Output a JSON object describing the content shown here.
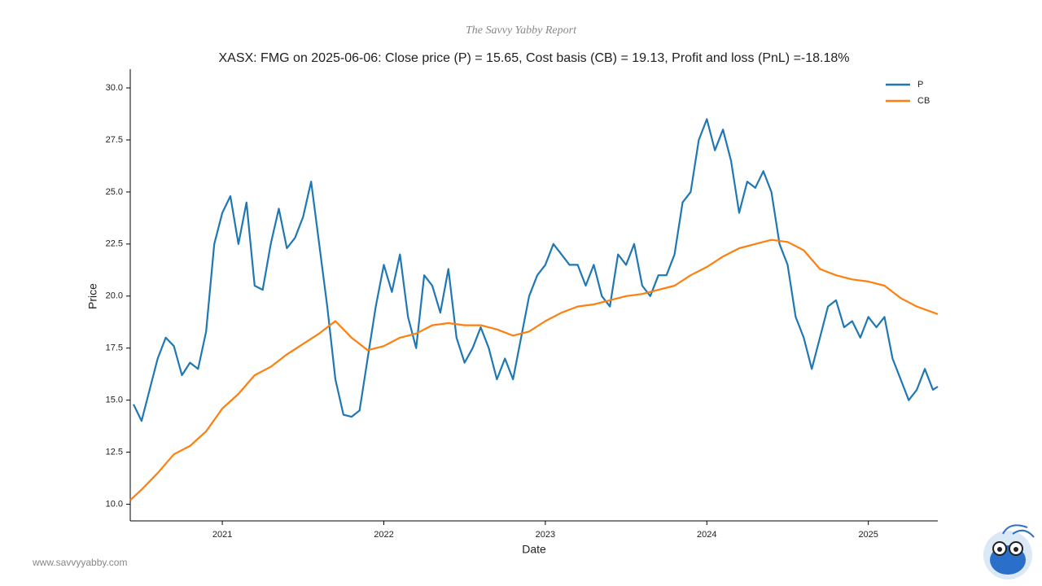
{
  "header": "The Savvy Yabby Report",
  "footer": "www.savvyyabby.com",
  "chart_data": {
    "type": "line",
    "title": "XASX: FMG on 2025-06-06: Close price (P) = 15.65, Cost basis (CB) = 19.13, Profit and loss (PnL) =-18.18%",
    "x_label": "Date",
    "y_label": "Price",
    "xlim": [
      2020.43,
      2025.43
    ],
    "xticks": [
      2021,
      2022,
      2023,
      2024,
      2025
    ],
    "ylim": [
      9.2,
      30.9
    ],
    "yticks": [
      {
        "value": 10,
        "label": "10.0"
      },
      {
        "value": 12.5,
        "label": "12.5"
      },
      {
        "value": 15,
        "label": "15.0"
      },
      {
        "value": 17.5,
        "label": "17.5"
      },
      {
        "value": 20,
        "label": "20.0"
      },
      {
        "value": 22.5,
        "label": "22.5"
      },
      {
        "value": 25,
        "label": "25.0"
      },
      {
        "value": 27.5,
        "label": "27.5"
      },
      {
        "value": 30,
        "label": "30.0"
      }
    ],
    "legend": "upper right",
    "series": [
      {
        "name": "P",
        "color": "#1f77b4",
        "x": [
          2020.45,
          2020.5,
          2020.55,
          2020.6,
          2020.65,
          2020.7,
          2020.75,
          2020.8,
          2020.85,
          2020.9,
          2020.95,
          2021.0,
          2021.05,
          2021.1,
          2021.15,
          2021.2,
          2021.25,
          2021.3,
          2021.35,
          2021.4,
          2021.45,
          2021.5,
          2021.55,
          2021.6,
          2021.65,
          2021.7,
          2021.75,
          2021.8,
          2021.85,
          2021.9,
          2021.95,
          2022.0,
          2022.05,
          2022.1,
          2022.15,
          2022.2,
          2022.25,
          2022.3,
          2022.35,
          2022.4,
          2022.45,
          2022.5,
          2022.55,
          2022.6,
          2022.65,
          2022.7,
          2022.75,
          2022.8,
          2022.85,
          2022.9,
          2022.95,
          2023.0,
          2023.05,
          2023.1,
          2023.15,
          2023.2,
          2023.25,
          2023.3,
          2023.35,
          2023.4,
          2023.45,
          2023.5,
          2023.55,
          2023.6,
          2023.65,
          2023.7,
          2023.75,
          2023.8,
          2023.85,
          2023.9,
          2023.95,
          2024.0,
          2024.05,
          2024.1,
          2024.15,
          2024.2,
          2024.25,
          2024.3,
          2024.35,
          2024.4,
          2024.45,
          2024.5,
          2024.55,
          2024.6,
          2024.65,
          2024.7,
          2024.75,
          2024.8,
          2024.85,
          2024.9,
          2024.95,
          2025.0,
          2025.05,
          2025.1,
          2025.15,
          2025.2,
          2025.25,
          2025.3,
          2025.35,
          2025.4,
          2025.43
        ],
        "values": [
          14.8,
          14.0,
          15.5,
          17.0,
          18.0,
          17.6,
          16.2,
          16.8,
          16.5,
          18.3,
          22.5,
          24.0,
          24.8,
          22.5,
          24.5,
          20.5,
          20.3,
          22.5,
          24.2,
          22.3,
          22.8,
          23.8,
          25.5,
          22.5,
          19.5,
          16.0,
          14.3,
          14.2,
          14.5,
          17.0,
          19.5,
          21.5,
          20.2,
          22.0,
          19.0,
          17.5,
          21.0,
          20.5,
          19.2,
          21.3,
          18.0,
          16.8,
          17.5,
          18.5,
          17.5,
          16.0,
          17.0,
          16.0,
          18.0,
          20.0,
          21.0,
          21.5,
          22.5,
          22.0,
          21.5,
          21.5,
          20.5,
          21.5,
          20.0,
          19.5,
          22.0,
          21.5,
          22.5,
          20.5,
          20.0,
          21.0,
          21.0,
          22.0,
          24.5,
          25.0,
          27.5,
          28.5,
          27.0,
          28.0,
          26.5,
          24.0,
          25.5,
          25.2,
          26.0,
          25.0,
          22.5,
          21.5,
          19.0,
          18.0,
          16.5,
          18.0,
          19.5,
          19.8,
          18.5,
          18.8,
          18.0,
          19.0,
          18.5,
          19.0,
          17.0,
          16.0,
          15.0,
          15.5,
          16.5,
          15.5,
          15.65
        ]
      },
      {
        "name": "CB",
        "color": "#ff7f0e",
        "x": [
          2020.43,
          2020.5,
          2020.6,
          2020.7,
          2020.8,
          2020.9,
          2021.0,
          2021.1,
          2021.2,
          2021.3,
          2021.4,
          2021.5,
          2021.6,
          2021.7,
          2021.8,
          2021.9,
          2022.0,
          2022.1,
          2022.2,
          2022.3,
          2022.4,
          2022.5,
          2022.6,
          2022.7,
          2022.8,
          2022.9,
          2023.0,
          2023.1,
          2023.2,
          2023.3,
          2023.4,
          2023.5,
          2023.6,
          2023.7,
          2023.8,
          2023.9,
          2024.0,
          2024.1,
          2024.2,
          2024.3,
          2024.4,
          2024.5,
          2024.6,
          2024.7,
          2024.8,
          2024.9,
          2025.0,
          2025.1,
          2025.2,
          2025.3,
          2025.43
        ],
        "values": [
          10.2,
          10.7,
          11.5,
          12.4,
          12.8,
          13.5,
          14.6,
          15.3,
          16.2,
          16.6,
          17.2,
          17.7,
          18.2,
          18.8,
          18.0,
          17.4,
          17.6,
          18.0,
          18.2,
          18.6,
          18.7,
          18.6,
          18.6,
          18.4,
          18.1,
          18.3,
          18.8,
          19.2,
          19.5,
          19.6,
          19.8,
          20.0,
          20.1,
          20.3,
          20.5,
          21.0,
          21.4,
          21.9,
          22.3,
          22.5,
          22.7,
          22.6,
          22.2,
          21.3,
          21.0,
          20.8,
          20.7,
          20.5,
          19.9,
          19.5,
          19.13
        ]
      }
    ]
  }
}
